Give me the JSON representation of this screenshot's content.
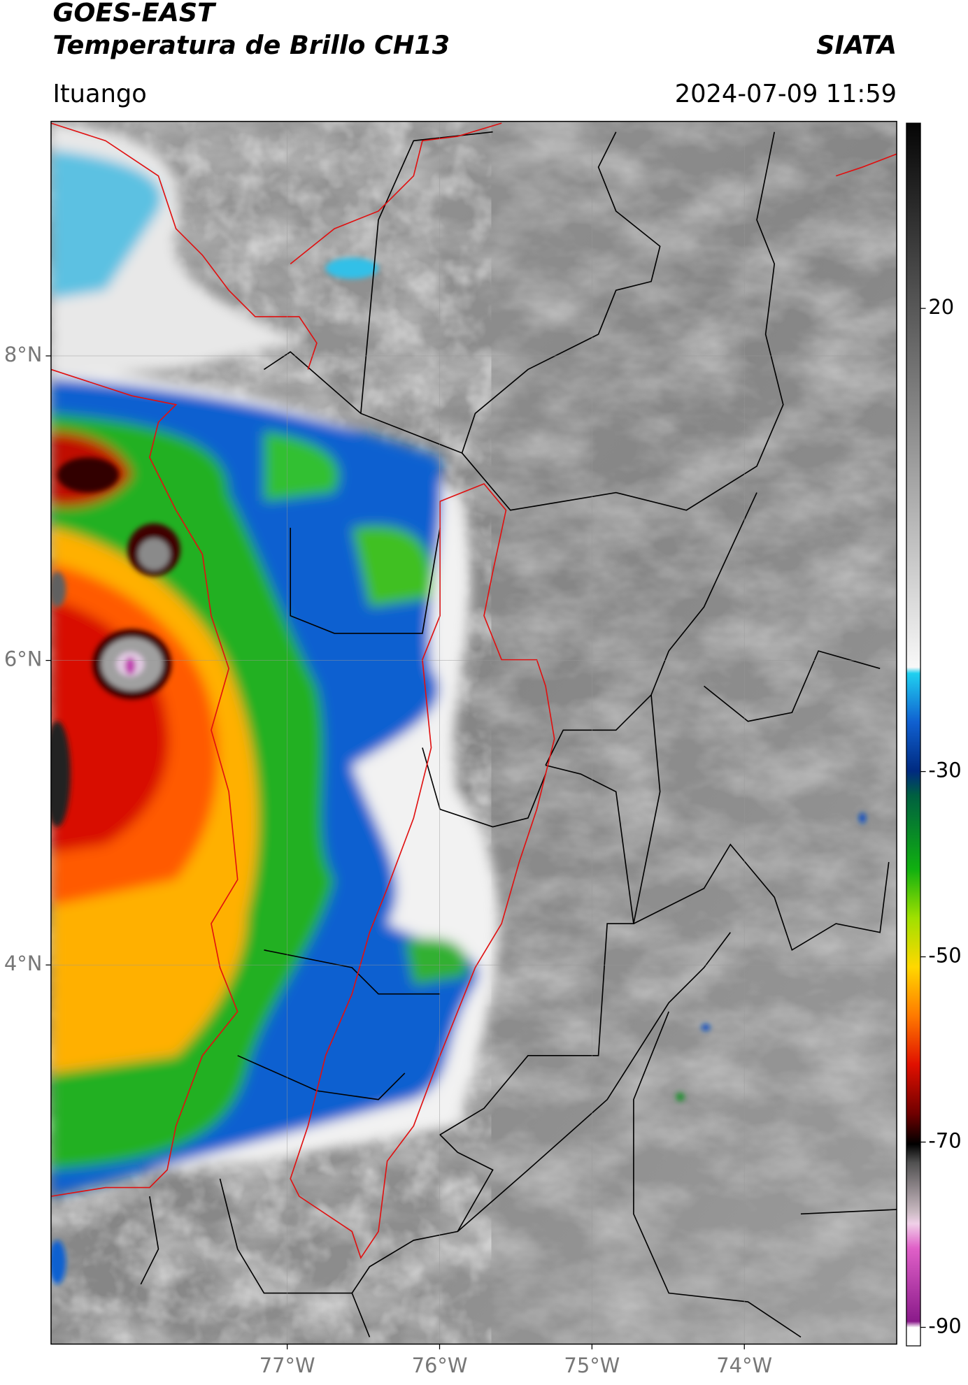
{
  "header": {
    "title": "GOES-EAST",
    "subtitle": "Temperatura de Brillo CH13",
    "source": "SIATA",
    "location": "Ituango",
    "datetime": "2024-07-09 11:59"
  },
  "map": {
    "xlim": [
      -78.55,
      -73.0
    ],
    "ylim": [
      1.51,
      9.54
    ],
    "xticks": [
      {
        "value": -77,
        "label": "77°W"
      },
      {
        "value": -76,
        "label": "76°W"
      },
      {
        "value": -75,
        "label": "75°W"
      },
      {
        "value": -74,
        "label": "74°W"
      }
    ],
    "yticks": [
      {
        "value": 8,
        "label": "8°N"
      },
      {
        "value": 6,
        "label": "6°N"
      },
      {
        "value": 4,
        "label": "4°N"
      }
    ],
    "grid": true
  },
  "colorbar": {
    "lim": [
      -92,
      40
    ],
    "ticks": [
      20,
      -30,
      -50,
      -70,
      -90
    ]
  }
}
